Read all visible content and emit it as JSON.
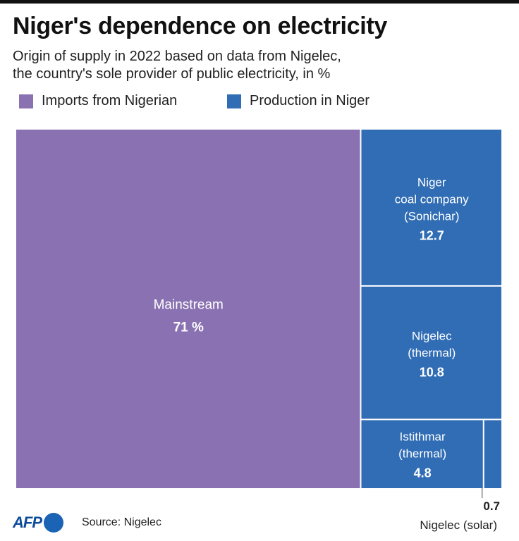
{
  "header": {
    "title": "Niger's dependence on electricity",
    "subtitle_line1": "Origin of supply in 2022 based on data from Nigelec,",
    "subtitle_line2": "the country's sole provider of public electricity, in %"
  },
  "legend": [
    {
      "label": "Imports from Nigerian",
      "color": "#8a72b2"
    },
    {
      "label": "Production in Niger",
      "color": "#306db5"
    }
  ],
  "chart_data": {
    "type": "treemap",
    "title": "Niger's dependence on electricity",
    "unit": "%",
    "groups": [
      {
        "name": "Imports from Nigerian",
        "color": "#8a72b2",
        "items": [
          {
            "label": "Mainstream",
            "value": 71,
            "value_label": "71 %"
          }
        ]
      },
      {
        "name": "Production in Niger",
        "color": "#306db5",
        "items": [
          {
            "label": "Niger\ncoal company\n(Sonichar)",
            "value": 12.7,
            "value_label": "12.7"
          },
          {
            "label": "Nigelec\n(thermal)",
            "value": 10.8,
            "value_label": "10.8"
          },
          {
            "label": "Istithmar\n(thermal)",
            "value": 4.8,
            "value_label": "4.8"
          },
          {
            "label": "Nigelec (solar)",
            "value": 0.7,
            "value_label": "0.7",
            "label_outside": true
          }
        ]
      }
    ]
  },
  "footer": {
    "logo_text": "AFP",
    "source": "Source: Nigelec"
  }
}
